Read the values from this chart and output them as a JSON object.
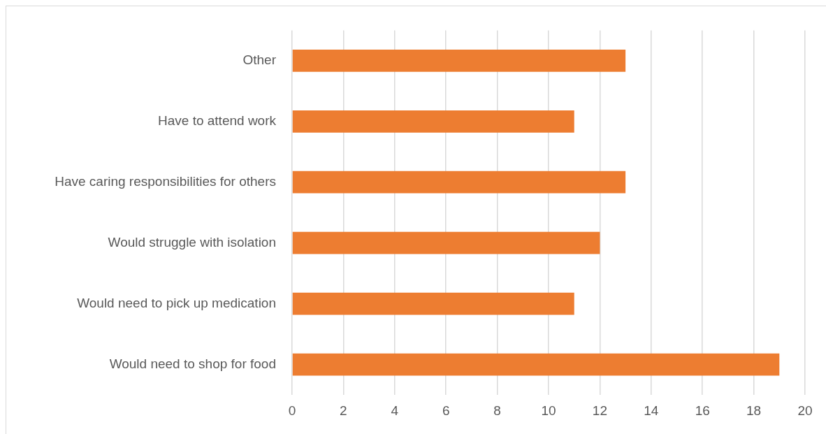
{
  "chart_data": {
    "type": "bar",
    "orientation": "horizontal",
    "categories": [
      "Other",
      "Have to attend work",
      "Have caring responsibilities for others",
      "Would struggle with isolation",
      "Would need to pick up medication",
      "Would need to shop for food"
    ],
    "values": [
      13,
      11,
      13,
      12,
      11,
      19
    ],
    "color": "#ed7d31",
    "xlim": [
      0,
      20
    ],
    "xticks": [
      0,
      2,
      4,
      6,
      8,
      10,
      12,
      14,
      16,
      18,
      20
    ],
    "grid": "x"
  }
}
